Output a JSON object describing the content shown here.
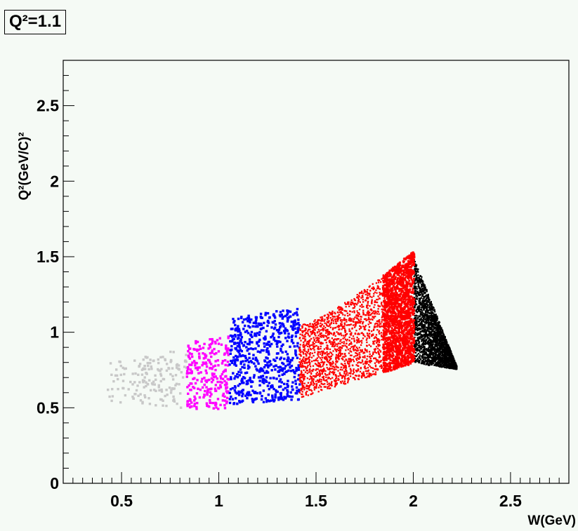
{
  "chart_data": {
    "type": "scatter",
    "title": "Q²=1.1",
    "xlabel": "W(GeV)",
    "ylabel": "Q²(GeV/C)²",
    "xlim": [
      0.2,
      2.8
    ],
    "ylim": [
      0,
      2.8
    ],
    "x_ticks": [
      0.5,
      1,
      1.5,
      2,
      2.5
    ],
    "x_tick_labels": [
      "0.5",
      "1",
      "1.5",
      "2",
      "2.5"
    ],
    "y_ticks": [
      0,
      0.5,
      1,
      1.5,
      2,
      2.5
    ],
    "y_tick_labels": [
      "0",
      "0.5",
      "1",
      "1.5",
      "2",
      "2.5"
    ],
    "grid": false,
    "series": [
      {
        "color": "#c8c8c8",
        "w_range": [
          0.42,
          0.83
        ],
        "q2_range": [
          0.5,
          0.9
        ]
      },
      {
        "color": "#ff00ff",
        "w_range": [
          0.83,
          1.05
        ],
        "q2_range": [
          0.48,
          1.02
        ]
      },
      {
        "color": "#0000ff",
        "w_range": [
          1.05,
          1.41
        ],
        "q2_range": [
          0.52,
          1.17
        ]
      },
      {
        "color": "#ff0000",
        "w_range": [
          1.41,
          2.0
        ],
        "q2_range": [
          0.55,
          1.6
        ]
      },
      {
        "color": "#000000",
        "w_range": [
          2.0,
          2.22
        ],
        "q2_range": [
          0.75,
          1.5
        ]
      }
    ]
  }
}
